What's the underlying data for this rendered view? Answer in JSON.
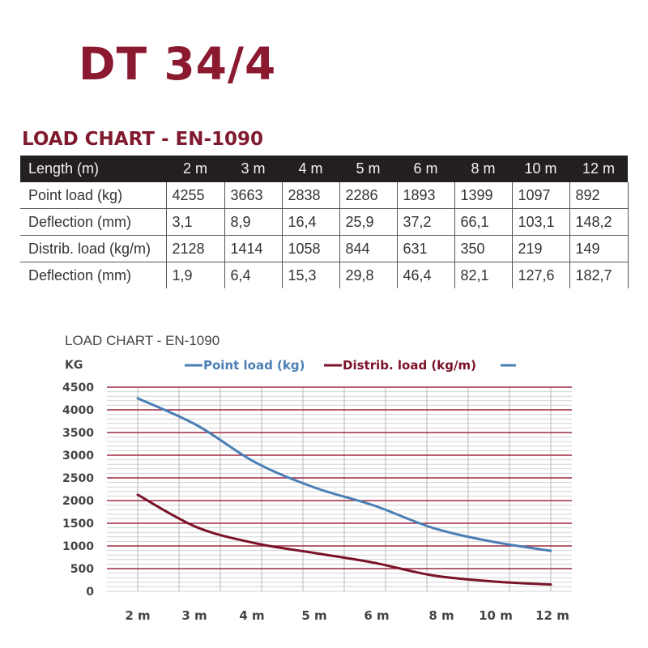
{
  "header": {
    "title": "DT 34/4",
    "subtitle": "LOAD CHART - EN-1090"
  },
  "table": {
    "columns": [
      "Length (m)",
      "2 m",
      "3 m",
      "4 m",
      "5 m",
      "6 m",
      "8 m",
      "10 m",
      "12 m"
    ],
    "rows": [
      {
        "label": "Point load (kg)",
        "values": [
          "4255",
          "3663",
          "2838",
          "2286",
          "1893",
          "1399",
          "1097",
          "892"
        ]
      },
      {
        "label": "Deflection (mm)",
        "values": [
          "3,1",
          "8,9",
          "16,4",
          "25,9",
          "37,2",
          "66,1",
          "103,1",
          "148,2"
        ]
      },
      {
        "label": "Distrib. load (kg/m)",
        "values": [
          "2128",
          "1414",
          "1058",
          "844",
          "631",
          "350",
          "219",
          "149"
        ]
      },
      {
        "label": "Deflection (mm)",
        "values": [
          "1,9",
          "6,4",
          "15,3",
          "29,8",
          "46,4",
          "82,1",
          "127,6",
          "182,7"
        ]
      }
    ]
  },
  "colors": {
    "brand": "#8b1a30",
    "point_load": "#4a7fb5",
    "distrib_load": "#7a1228",
    "major_grid": "#9c2a40",
    "minor_grid": "#d0d0d0",
    "header_bg": "#231f20"
  },
  "chart_data": {
    "type": "line",
    "title": "LOAD CHART - EN-1090",
    "xlabel": "",
    "ylabel": "KG",
    "categories": [
      "2 m",
      "3 m",
      "4 m",
      "5 m",
      "6 m",
      "8 m",
      "10 m",
      "12 m"
    ],
    "series": [
      {
        "name": "Point load (kg)",
        "color": "#4a7fb5",
        "values": [
          4255,
          3663,
          2838,
          2286,
          1893,
          1399,
          1097,
          892
        ]
      },
      {
        "name": "Distrib. load (kg/m)",
        "color": "#7a1228",
        "values": [
          2128,
          1414,
          1058,
          844,
          631,
          350,
          219,
          149
        ]
      },
      {
        "name": "",
        "color": "#4a7fb5",
        "values": []
      }
    ],
    "yticks": [
      0,
      500,
      1000,
      1500,
      2000,
      2500,
      3000,
      3500,
      4000,
      4500
    ],
    "ylim": [
      0,
      4500
    ],
    "grid": true,
    "legend_position": "top"
  }
}
